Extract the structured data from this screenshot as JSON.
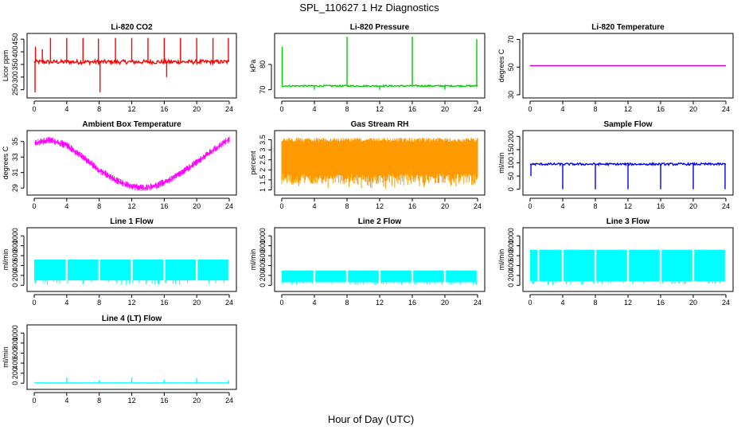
{
  "figure": {
    "title": "SPL_110627  1 Hz Diagnostics",
    "xlabel": "Hour of Day (UTC)"
  },
  "chart_data": [
    {
      "type": "line",
      "title": "Li-820 CO2",
      "ylabel": "Licor ppm",
      "color": "#ff0000",
      "xlim": [
        0,
        24
      ],
      "ylim": [
        230,
        460
      ],
      "x_ticks": [
        0,
        4,
        8,
        12,
        16,
        20,
        24
      ],
      "y_ticks": [
        250,
        300,
        350,
        400,
        450
      ],
      "baseline": 360,
      "noise": 8,
      "spikes": [
        {
          "x": 0.1,
          "y": 240
        },
        {
          "x": 0.15,
          "y": 420
        },
        {
          "x": 1.0,
          "y": 410
        },
        {
          "x": 2.0,
          "y": 455
        },
        {
          "x": 4.0,
          "y": 455
        },
        {
          "x": 6.0,
          "y": 455
        },
        {
          "x": 7.9,
          "y": 452
        },
        {
          "x": 8.1,
          "y": 240
        },
        {
          "x": 10.0,
          "y": 455
        },
        {
          "x": 12.0,
          "y": 455
        },
        {
          "x": 14.0,
          "y": 455
        },
        {
          "x": 16.0,
          "y": 455
        },
        {
          "x": 16.3,
          "y": 300
        },
        {
          "x": 18.0,
          "y": 455
        },
        {
          "x": 20.0,
          "y": 455
        },
        {
          "x": 22.0,
          "y": 455
        },
        {
          "x": 23.9,
          "y": 455
        }
      ]
    },
    {
      "type": "line",
      "title": "Li-820 Pressure",
      "ylabel": "kPa",
      "color": "#00cc00",
      "xlim": [
        0,
        24
      ],
      "ylim": [
        68,
        91
      ],
      "x_ticks": [
        0,
        4,
        8,
        12,
        16,
        20,
        24
      ],
      "y_ticks": [
        70,
        80
      ],
      "baseline": 71.5,
      "noise": 0.3,
      "spikes": [
        {
          "x": 0.05,
          "y": 87
        },
        {
          "x": 4.0,
          "y": 70
        },
        {
          "x": 8.0,
          "y": 91
        },
        {
          "x": 12.0,
          "y": 70
        },
        {
          "x": 16.0,
          "y": 91
        },
        {
          "x": 20.0,
          "y": 70
        },
        {
          "x": 23.9,
          "y": 90
        }
      ]
    },
    {
      "type": "line",
      "title": "Li-820 Temperature",
      "ylabel": "degrees C",
      "color": "#cc00cc",
      "xlim": [
        0,
        24
      ],
      "ylim": [
        30,
        72
      ],
      "x_ticks": [
        0,
        4,
        8,
        12,
        16,
        20,
        24
      ],
      "y_ticks": [
        30,
        50,
        70
      ],
      "baseline": 51,
      "noise": 0,
      "spikes": []
    },
    {
      "type": "line",
      "title": "Ambient Box Temperature",
      "ylabel": "degrees C",
      "color": "#ff00ff",
      "xlim": [
        0,
        24
      ],
      "ylim": [
        28.5,
        36
      ],
      "x_ticks": [
        0,
        4,
        8,
        12,
        16,
        20,
        24
      ],
      "y_ticks": [
        29,
        31,
        33,
        35
      ],
      "curve": [
        {
          "x": 0,
          "y": 34.8
        },
        {
          "x": 2,
          "y": 35.2
        },
        {
          "x": 4,
          "y": 34.5
        },
        {
          "x": 6,
          "y": 33.0
        },
        {
          "x": 8,
          "y": 31.3
        },
        {
          "x": 10,
          "y": 30.0
        },
        {
          "x": 12,
          "y": 29.2
        },
        {
          "x": 13.5,
          "y": 29.0
        },
        {
          "x": 15,
          "y": 29.3
        },
        {
          "x": 17,
          "y": 30.2
        },
        {
          "x": 19,
          "y": 31.6
        },
        {
          "x": 21,
          "y": 33.1
        },
        {
          "x": 23,
          "y": 34.6
        },
        {
          "x": 24,
          "y": 35.3
        }
      ],
      "noise": 0.45
    },
    {
      "type": "line",
      "title": "Gas Stream RH",
      "ylabel": "percent",
      "color": "#ff9900",
      "xlim": [
        0,
        24
      ],
      "ylim": [
        0.9,
        3.8
      ],
      "x_ticks": [
        0,
        4,
        8,
        12,
        16,
        20,
        24
      ],
      "y_ticks": [
        1.0,
        1.5,
        2.0,
        2.5,
        3.0,
        3.5
      ],
      "band": {
        "low": 1.3,
        "high": 3.6
      },
      "dips": 1.05
    },
    {
      "type": "line",
      "title": "Sample Flow",
      "ylabel": "ml/min",
      "color": "#0000ff",
      "xlim": [
        0,
        24
      ],
      "ylim": [
        -10,
        210
      ],
      "x_ticks": [
        0,
        4,
        8,
        12,
        16,
        20,
        24
      ],
      "y_ticks": [
        0,
        50,
        100,
        150,
        200
      ],
      "baseline": 95,
      "noise": 4,
      "spikes": [
        {
          "x": 0.1,
          "y": 50
        },
        {
          "x": 4.0,
          "y": 0
        },
        {
          "x": 8.0,
          "y": 0
        },
        {
          "x": 12.0,
          "y": 0
        },
        {
          "x": 16.0,
          "y": 0
        },
        {
          "x": 20.0,
          "y": 0
        },
        {
          "x": 23.9,
          "y": 0
        }
      ]
    },
    {
      "type": "area",
      "title": "Line 1 Flow",
      "ylabel": "ml/min",
      "color": "#00ffff",
      "xlim": [
        0,
        24
      ],
      "ylim": [
        -60,
        1100
      ],
      "x_ticks": [
        0,
        4,
        8,
        12,
        16,
        20,
        24
      ],
      "y_ticks": [
        0,
        200,
        400,
        600,
        800,
        1000
      ],
      "band": {
        "low": 100,
        "high": 520
      },
      "gaps": [
        4,
        8,
        12,
        16,
        20,
        24
      ]
    },
    {
      "type": "area",
      "title": "Line 2 Flow",
      "ylabel": "ml/min",
      "color": "#00ffff",
      "xlim": [
        0,
        24
      ],
      "ylim": [
        -60,
        1100
      ],
      "x_ticks": [
        0,
        4,
        8,
        12,
        16,
        20,
        24
      ],
      "y_ticks": [
        0,
        200,
        400,
        600,
        800,
        1000
      ],
      "band": {
        "low": 60,
        "high": 300
      },
      "gaps": [
        4,
        8,
        12,
        16,
        20
      ]
    },
    {
      "type": "area",
      "title": "Line 3 Flow",
      "ylabel": "ml/min",
      "color": "#00ffff",
      "xlim": [
        0,
        24
      ],
      "ylim": [
        -60,
        1100
      ],
      "x_ticks": [
        0,
        4,
        8,
        12,
        16,
        20,
        24
      ],
      "y_ticks": [
        0,
        200,
        400,
        600,
        800,
        1000
      ],
      "band": {
        "low": 80,
        "high": 720
      },
      "gaps": [
        1,
        4,
        8,
        12,
        16,
        20
      ]
    },
    {
      "type": "line",
      "title": "Line 4 (LT) Flow",
      "ylabel": "ml/min",
      "color": "#00ffff",
      "xlim": [
        0,
        24
      ],
      "ylim": [
        -60,
        1100
      ],
      "x_ticks": [
        0,
        4,
        8,
        12,
        16,
        20,
        24
      ],
      "y_ticks": [
        0,
        200,
        400,
        600,
        800,
        1000
      ],
      "baseline": 5,
      "noise": 2,
      "spikes": [
        {
          "x": 4.0,
          "y": 110
        },
        {
          "x": 8.0,
          "y": 60
        },
        {
          "x": 12.0,
          "y": 120
        },
        {
          "x": 16.0,
          "y": 70
        },
        {
          "x": 20.0,
          "y": 100
        },
        {
          "x": 23.9,
          "y": 60
        }
      ]
    }
  ]
}
